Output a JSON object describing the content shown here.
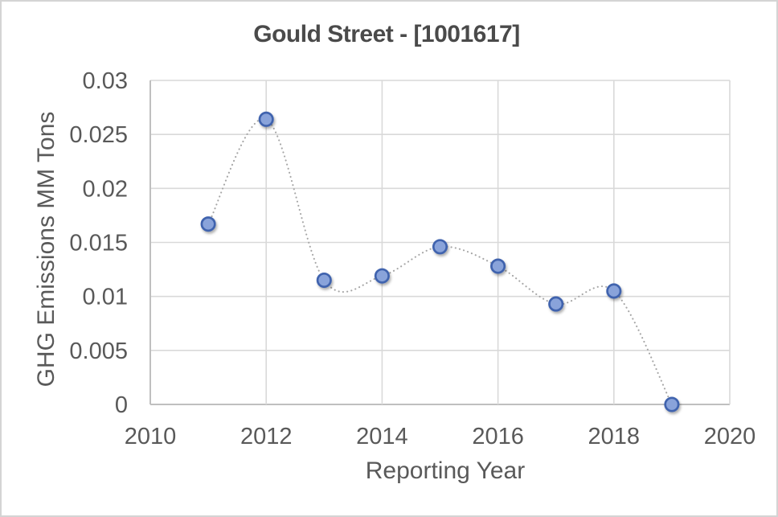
{
  "chart_data": {
    "type": "scatter",
    "subtype": "smooth-dotted-line-with-markers",
    "title": "Gould Street - [1001617]",
    "xlabel": "Reporting Year",
    "ylabel": "GHG Emissions MM Tons",
    "x": [
      2011,
      2012,
      2013,
      2014,
      2015,
      2016,
      2017,
      2018,
      2019
    ],
    "y": [
      0.0167,
      0.0264,
      0.0115,
      0.0119,
      0.0146,
      0.0128,
      0.0093,
      0.0105,
      0.0
    ],
    "xlim": [
      2010,
      2020
    ],
    "ylim": [
      0,
      0.03
    ],
    "x_ticks": {
      "values": [
        2010,
        2012,
        2014,
        2016,
        2018,
        2020
      ],
      "labels": [
        "2010",
        "2012",
        "2014",
        "2016",
        "2018",
        "2020"
      ]
    },
    "y_ticks": {
      "values": [
        0,
        0.005,
        0.01,
        0.015,
        0.02,
        0.025,
        0.03
      ],
      "labels": [
        "0",
        "0.005",
        "0.01",
        "0.015",
        "0.02",
        "0.025",
        "0.03"
      ]
    },
    "grid": true,
    "legend": "none",
    "colors": {
      "marker_fill": "#89a3da",
      "marker_border": "#3f63ae",
      "line": "#a6a6a6",
      "gridline": "#d9d9d9",
      "axis_line": "#bfbfbf",
      "tick_text": "#595959",
      "axis_title_text": "#595959",
      "title_text": "#4a4a4a",
      "background": "#ffffff",
      "canvas_border": "#d4d4d4"
    }
  }
}
